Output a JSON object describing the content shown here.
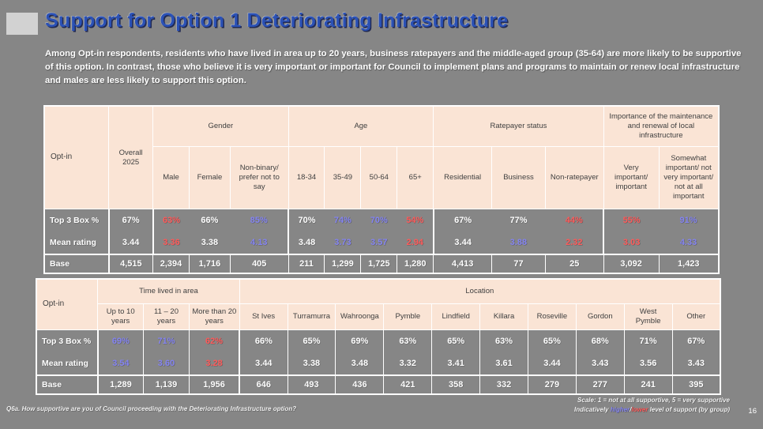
{
  "slide": {
    "title": "Support for Option 1 Deteriorating Infrastructure",
    "intro": "Among Opt-in respondents, residents who have lived in area up to 20 years, business ratepayers and the middle-aged group (35-64) are more likely to be supportive of this option. In contrast, those who believe it is very important or important for Council to implement plans and programs to maintain or renew local infrastructure and males are less likely to support this option.",
    "page_number": "16",
    "footnote_question": "Q6a. How supportive are you of Council proceeding with the Deteriorating Infrastructure option?",
    "footnote_scale": "Scale: 1 = not at all supportive, 5 = very supportive",
    "legend": {
      "prefix": "Indicatively ",
      "higher": "higher",
      "slash": "/",
      "lower": "lower",
      "suffix": " level of support (by group)"
    }
  },
  "colors": {
    "background": "#868686",
    "header_bg": "#fae4d5",
    "title_blue": "#2b51b5",
    "higher": "#8484f2",
    "lower": "#ff5a5a",
    "value_text": "#ffffff"
  },
  "table1": {
    "row_header": "Opt-in",
    "pre_cols": [
      "Overall 2025"
    ],
    "groups": [
      {
        "label": "Gender",
        "cols": [
          "Male",
          "Female",
          "Non-binary/ prefer not to say"
        ]
      },
      {
        "label": "Age",
        "cols": [
          "18-34",
          "35-49",
          "50-64",
          "65+"
        ]
      },
      {
        "label": "Ratepayer status",
        "cols": [
          "Residential",
          "Business",
          "Non-ratepayer"
        ]
      },
      {
        "label": "Importance of the maintenance and renewal of local infrastructure",
        "cols": [
          "Very important/ important",
          "Somewhat important/ not very important/ not at all important"
        ]
      }
    ],
    "rows": [
      {
        "label": "Top 3 Box %",
        "type": "valrow",
        "cells": [
          {
            "v": "67%"
          },
          {
            "v": "63%",
            "c": "lower"
          },
          {
            "v": "66%"
          },
          {
            "v": "85%",
            "c": "higher"
          },
          {
            "v": "70%"
          },
          {
            "v": "74%",
            "c": "higher"
          },
          {
            "v": "70%",
            "c": "higher"
          },
          {
            "v": "54%",
            "c": "lower"
          },
          {
            "v": "67%"
          },
          {
            "v": "77%"
          },
          {
            "v": "44%",
            "c": "lower"
          },
          {
            "v": "55%",
            "c": "lower"
          },
          {
            "v": "91%",
            "c": "higher"
          }
        ]
      },
      {
        "label": "Mean rating",
        "type": "valrow",
        "cells": [
          {
            "v": "3.44"
          },
          {
            "v": "3.36",
            "c": "lower"
          },
          {
            "v": "3.38"
          },
          {
            "v": "4.13",
            "c": "higher"
          },
          {
            "v": "3.48"
          },
          {
            "v": "3.73",
            "c": "higher"
          },
          {
            "v": "3.57",
            "c": "higher"
          },
          {
            "v": "2.94",
            "c": "lower"
          },
          {
            "v": "3.44"
          },
          {
            "v": "3.88",
            "c": "higher"
          },
          {
            "v": "2.32",
            "c": "lower"
          },
          {
            "v": "3.03",
            "c": "lower"
          },
          {
            "v": "4.33",
            "c": "higher"
          }
        ]
      },
      {
        "label": "Base",
        "type": "base",
        "cells": [
          {
            "v": "4,515"
          },
          {
            "v": "2,394"
          },
          {
            "v": "1,716"
          },
          {
            "v": "405"
          },
          {
            "v": "211"
          },
          {
            "v": "1,299"
          },
          {
            "v": "1,725"
          },
          {
            "v": "1,280"
          },
          {
            "v": "4,413"
          },
          {
            "v": "77"
          },
          {
            "v": "25"
          },
          {
            "v": "3,092"
          },
          {
            "v": "1,423"
          }
        ]
      }
    ]
  },
  "table2": {
    "row_header": "Opt-in",
    "pre_cols": [],
    "groups": [
      {
        "label": "Time lived in area",
        "cols": [
          "Up to 10 years",
          "11 – 20 years",
          "More than 20 years"
        ]
      },
      {
        "label": "Location",
        "cols": [
          "St Ives",
          "Turramurra",
          "Wahroonga",
          "Pymble",
          "Lindfield",
          "Killara",
          "Roseville",
          "Gordon",
          "West Pymble",
          "Other"
        ]
      }
    ],
    "rows": [
      {
        "label": "Top 3 Box %",
        "type": "valrow",
        "cells": [
          {
            "v": "69%",
            "c": "higher"
          },
          {
            "v": "71%",
            "c": "higher"
          },
          {
            "v": "62%",
            "c": "lower"
          },
          {
            "v": "66%"
          },
          {
            "v": "65%"
          },
          {
            "v": "69%"
          },
          {
            "v": "63%"
          },
          {
            "v": "65%"
          },
          {
            "v": "63%"
          },
          {
            "v": "65%"
          },
          {
            "v": "68%"
          },
          {
            "v": "71%"
          },
          {
            "v": "67%"
          }
        ]
      },
      {
        "label": "Mean rating",
        "type": "valrow",
        "cells": [
          {
            "v": "3.54",
            "c": "higher"
          },
          {
            "v": "3.60",
            "c": "higher"
          },
          {
            "v": "3.28",
            "c": "lower"
          },
          {
            "v": "3.44"
          },
          {
            "v": "3.38"
          },
          {
            "v": "3.48"
          },
          {
            "v": "3.32"
          },
          {
            "v": "3.41"
          },
          {
            "v": "3.61"
          },
          {
            "v": "3.44"
          },
          {
            "v": "3.43"
          },
          {
            "v": "3.56"
          },
          {
            "v": "3.43"
          }
        ]
      },
      {
        "label": "Base",
        "type": "base",
        "cells": [
          {
            "v": "1,289"
          },
          {
            "v": "1,139"
          },
          {
            "v": "1,956"
          },
          {
            "v": "646"
          },
          {
            "v": "493"
          },
          {
            "v": "436"
          },
          {
            "v": "421"
          },
          {
            "v": "358"
          },
          {
            "v": "332"
          },
          {
            "v": "279"
          },
          {
            "v": "277"
          },
          {
            "v": "241"
          },
          {
            "v": "395"
          }
        ]
      }
    ]
  }
}
